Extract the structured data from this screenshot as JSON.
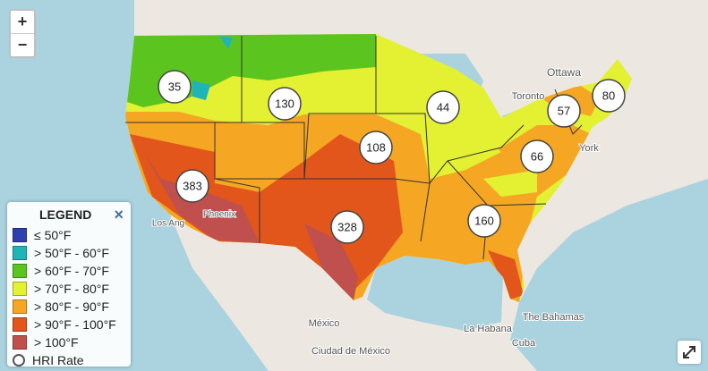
{
  "controls": {
    "zoom_in": "+",
    "zoom_out": "−"
  },
  "legend": {
    "title": "LEGEND",
    "close": "×",
    "items": [
      {
        "label": "≤ 50°F",
        "color": "#2e3fb0"
      },
      {
        "label": "> 50°F - 60°F",
        "color": "#1fb5b8"
      },
      {
        "label": "> 60°F - 70°F",
        "color": "#5cc41f"
      },
      {
        "label": "> 70°F - 80°F",
        "color": "#e4f032"
      },
      {
        "label": "> 80°F - 90°F",
        "color": "#f5a623"
      },
      {
        "label": "> 90°F - 100°F",
        "color": "#e2561c"
      },
      {
        "label": "> 100°F",
        "color": "#c0504d"
      }
    ],
    "hri_label": "HRI Rate"
  },
  "markers": [
    35,
    130,
    44,
    57,
    80,
    108,
    66,
    383,
    328,
    160
  ],
  "place_labels": [
    "Ottawa",
    "Toronto",
    "York",
    "Los Ang",
    "Phoenix",
    "México",
    "La Habana",
    "The Bahamas",
    "Cuba",
    "Ciudad de México"
  ]
}
